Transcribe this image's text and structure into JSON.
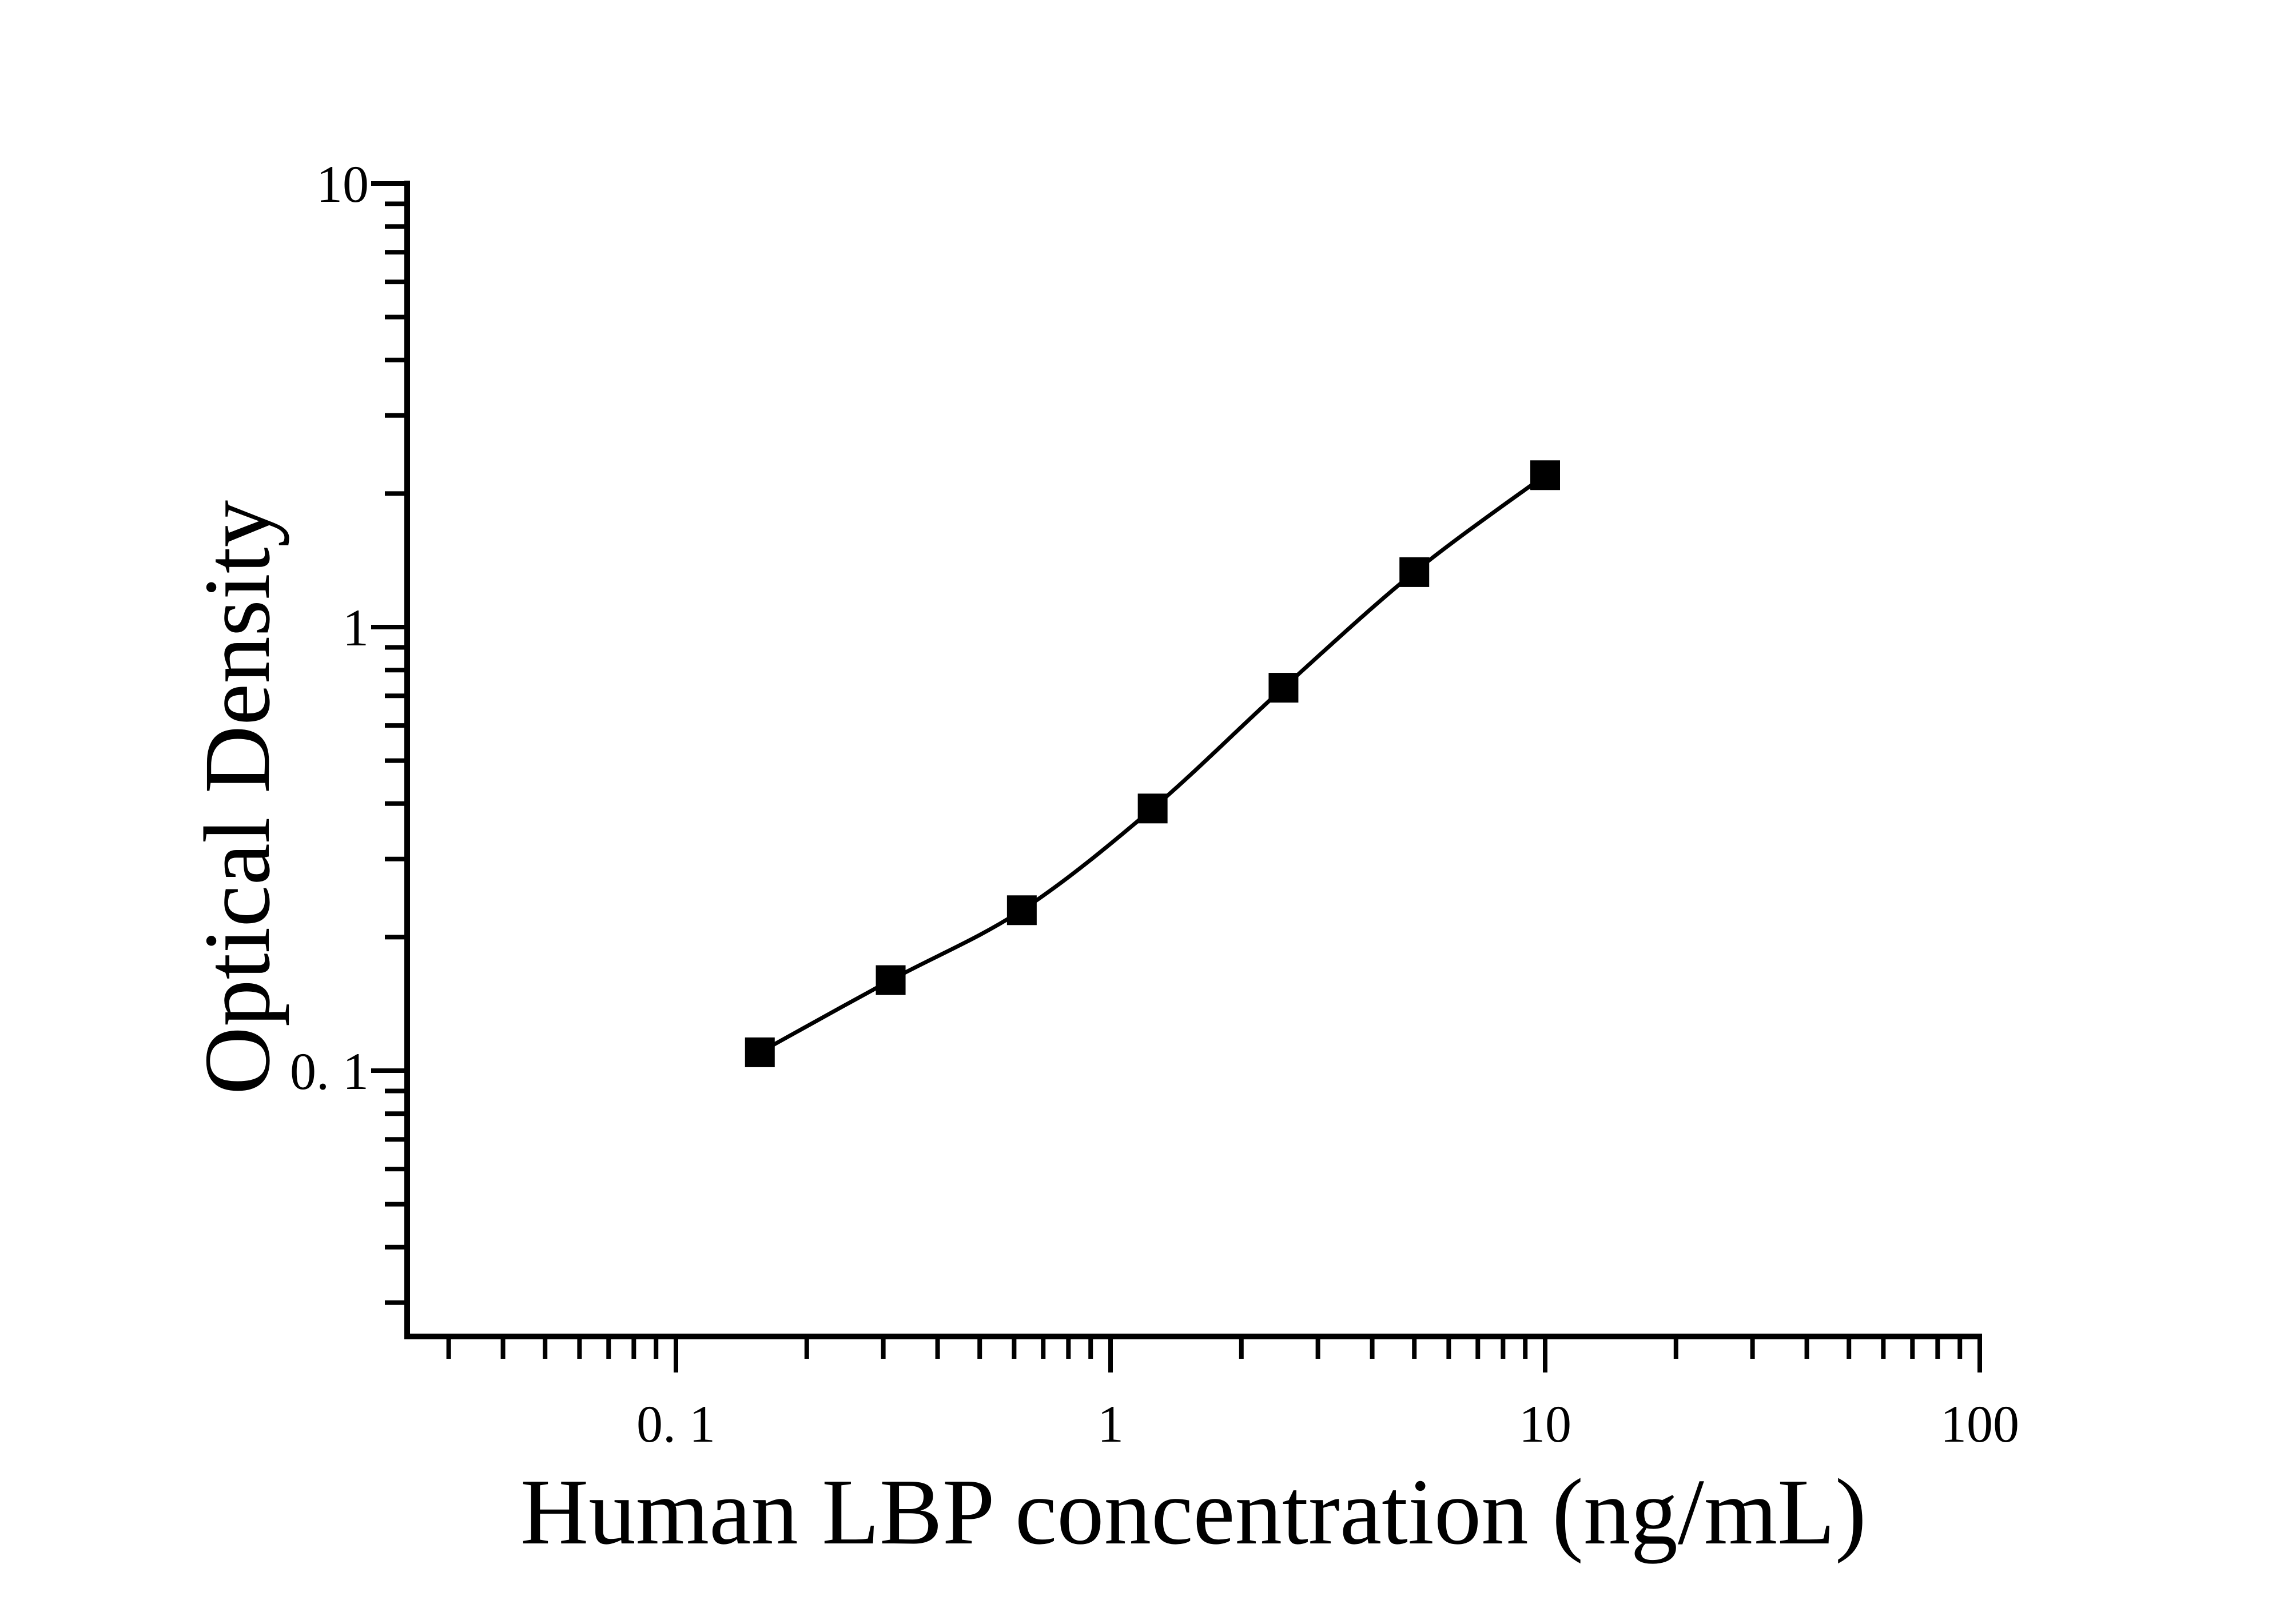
{
  "figure": {
    "background_color": "#ffffff",
    "ink_color": "#000000"
  },
  "chart_data": {
    "type": "scatter",
    "subtype": "log-log standard curve with smooth fitted line",
    "xlabel": "Human LBP concentration (ng/mL)",
    "ylabel": "Optical Density",
    "x_scale": "log",
    "y_scale": "log",
    "xlim": [
      0.024,
      100
    ],
    "ylim": [
      0.025,
      10
    ],
    "grid": false,
    "legend": null,
    "x_major_ticks": [
      {
        "value": 0.1,
        "label": "0. 1"
      },
      {
        "value": 1,
        "label": "1"
      },
      {
        "value": 10,
        "label": "10"
      },
      {
        "value": 100,
        "label": "100"
      }
    ],
    "y_major_ticks": [
      {
        "value": 0.1,
        "label": "0. 1"
      },
      {
        "value": 1,
        "label": "1"
      },
      {
        "value": 10,
        "label": "10"
      }
    ],
    "x_minor_ticks": [
      0.03,
      0.04,
      0.05,
      0.06,
      0.07,
      0.08,
      0.09,
      0.2,
      0.3,
      0.4,
      0.5,
      0.6,
      0.7,
      0.8,
      0.9,
      2,
      3,
      4,
      5,
      6,
      7,
      8,
      9,
      20,
      30,
      40,
      50,
      60,
      70,
      80,
      90
    ],
    "y_minor_ticks": [
      0.03,
      0.04,
      0.05,
      0.06,
      0.07,
      0.08,
      0.09,
      0.2,
      0.3,
      0.4,
      0.5,
      0.6,
      0.7,
      0.8,
      0.9,
      2,
      3,
      4,
      5,
      6,
      7,
      8,
      9
    ],
    "series": [
      {
        "name": "standard-curve",
        "marker": "filled-square",
        "marker_color": "#000000",
        "line": "smooth",
        "line_color": "#000000",
        "points": [
          {
            "x": 0.156,
            "y": 0.11
          },
          {
            "x": 0.312,
            "y": 0.16
          },
          {
            "x": 0.625,
            "y": 0.23
          },
          {
            "x": 1.25,
            "y": 0.39
          },
          {
            "x": 2.5,
            "y": 0.73
          },
          {
            "x": 5,
            "y": 1.33
          },
          {
            "x": 10,
            "y": 2.2
          }
        ]
      }
    ]
  }
}
